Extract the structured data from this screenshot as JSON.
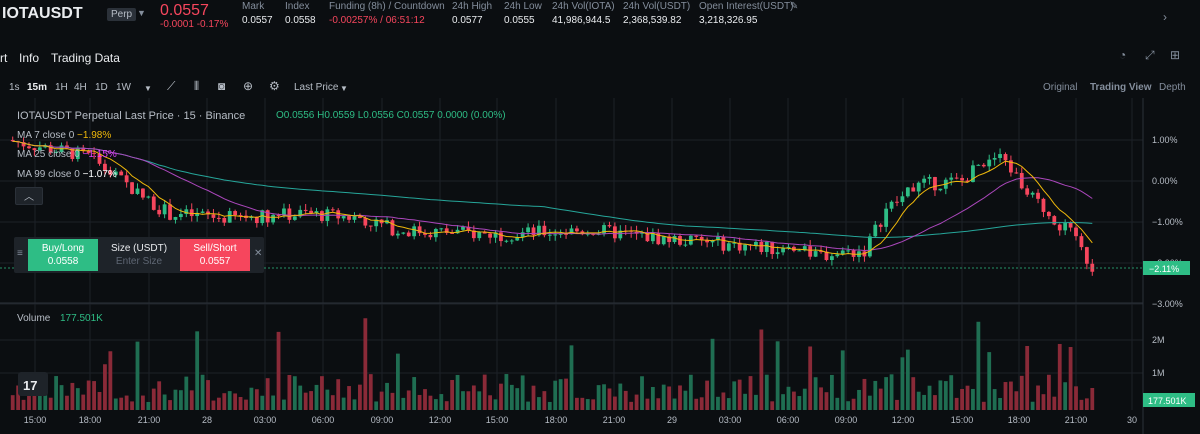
{
  "ticker": {
    "symbol": "IOTAUSDT",
    "badge": "Perp",
    "price": "0.0557",
    "change": "-0.0001  -0.17%",
    "stats": [
      {
        "label": "Mark",
        "value": "0.0557",
        "red": false
      },
      {
        "label": "Index",
        "value": "0.0558",
        "red": false
      },
      {
        "label": "Funding (8h) / Countdown",
        "value": "-0.00257% / 06:51:12",
        "red": true
      },
      {
        "label": "24h High",
        "value": "0.0577",
        "red": false
      },
      {
        "label": "24h Low",
        "value": "0.0555",
        "red": false
      },
      {
        "label": "24h Vol(IOTA)",
        "value": "41,986,944.5",
        "red": false
      },
      {
        "label": "24h Vol(USDT)",
        "value": "2,368,539.82",
        "red": false
      },
      {
        "label": "Open Interest(USDT)",
        "value": "3,218,326.95",
        "red": false
      }
    ]
  },
  "tabs": [
    "rt",
    "Info",
    "Trading Data"
  ],
  "toolbar": {
    "intervals": [
      "1s",
      "15m",
      "1H",
      "4H",
      "1D",
      "1W"
    ],
    "active_interval": "15m",
    "price_type": "Last Price",
    "views": [
      "Original",
      "Trading View",
      "Depth"
    ],
    "active_view": "Trading View"
  },
  "legend": {
    "title": "IOTAUSDT Perpetual Last Price · 15 · Binance",
    "ohlc": "O0.0556  H0.0559  L0.0556  C0.0557  0.0000 (0.00%)",
    "ma": [
      {
        "label": "MA 7 close 0",
        "value": "−1.98%",
        "color": "#f0b90b"
      },
      {
        "label": "MA 25 close 0",
        "value": "−1.15%",
        "color": "#e040fb"
      },
      {
        "label": "MA 99 close 0",
        "value": "−1.07%",
        "color": "#26a69a"
      }
    ],
    "volume_label": "Volume",
    "volume_value": "177.501K"
  },
  "order": {
    "buy_label": "Buy/Long",
    "buy_price": "0.0558",
    "size_label": "Size (USDT)",
    "size_placeholder": "Enter Size",
    "sell_label": "Sell/Short",
    "sell_price": "0.0557"
  },
  "price_axis": {
    "ticks": [
      "1.00%",
      "0.00%",
      "−1.00%",
      "−2.00%",
      "−3.00%"
    ],
    "current": "−2.11%",
    "current_color": "#2ebd85"
  },
  "volume_axis": {
    "ticks": [
      "2M",
      "1M"
    ],
    "current": "177.501K"
  },
  "time_axis": [
    "15:00",
    "18:00",
    "21:00",
    "28",
    "03:00",
    "06:00",
    "09:00",
    "12:00",
    "15:00",
    "18:00",
    "21:00",
    "29",
    "03:00",
    "06:00",
    "09:00",
    "12:00",
    "15:00",
    "18:00",
    "21:00",
    "30"
  ],
  "chart_data": {
    "type": "candlestick",
    "price_ticks_percent": [
      1,
      0,
      -1,
      -2,
      -3
    ],
    "ma_values_percent": {
      "MA 7": -1.98,
      "MA 25": -1.15,
      "MA 99": -1.07
    },
    "current_percent": -2.11,
    "volume_ticks": [
      "2M",
      "1M"
    ],
    "current_volume": "177.501K",
    "up_color": "#2ebd85",
    "down_color": "#f6465d"
  }
}
